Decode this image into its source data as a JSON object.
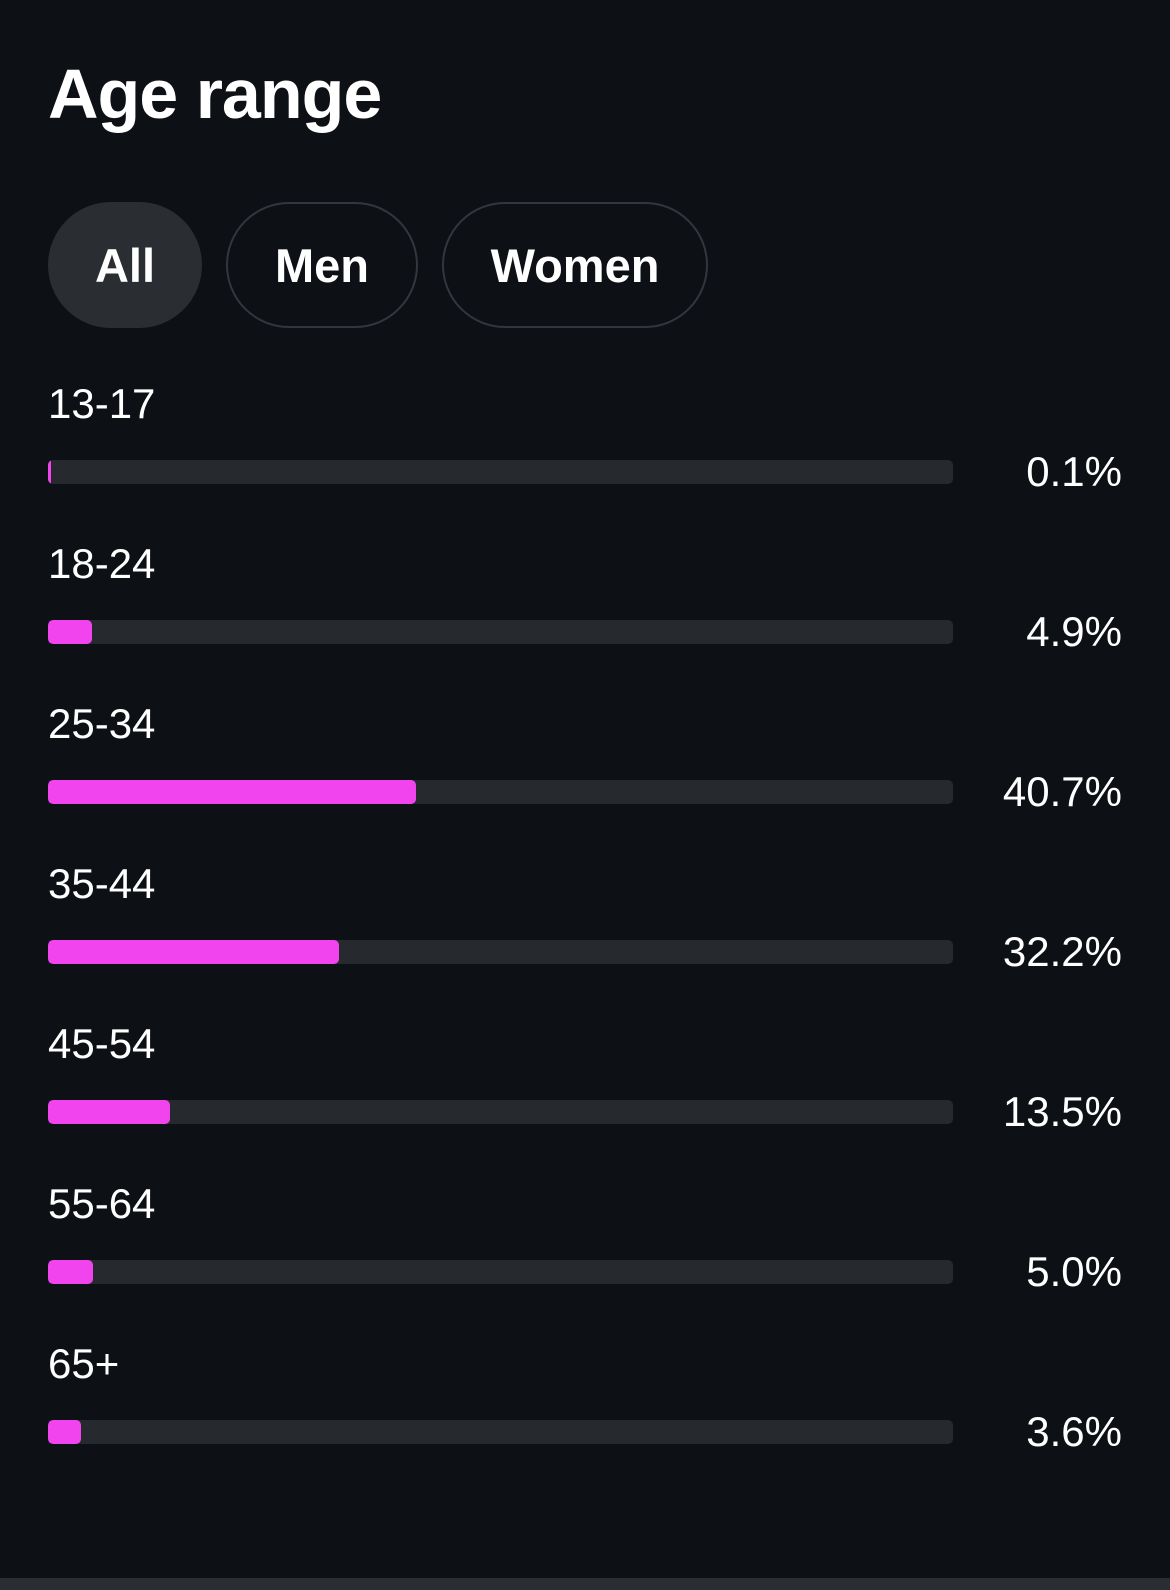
{
  "title": "Age range",
  "filters": [
    {
      "label": "All",
      "selected": true
    },
    {
      "label": "Men",
      "selected": false
    },
    {
      "label": "Women",
      "selected": false
    }
  ],
  "colors": {
    "background": "#0d1015",
    "bar_fill": "#f144ee",
    "bar_track": "#26292e",
    "pill_active": "#2a2e33"
  },
  "chart_data": {
    "type": "bar",
    "categories": [
      "13-17",
      "18-24",
      "25-34",
      "35-44",
      "45-54",
      "55-64",
      "65+"
    ],
    "values": [
      0.1,
      4.9,
      40.7,
      32.2,
      13.5,
      5.0,
      3.6
    ],
    "value_labels": [
      "0.1%",
      "4.9%",
      "40.7%",
      "32.2%",
      "13.5%",
      "5.0%",
      "3.6%"
    ],
    "title": "Age range",
    "xlabel": "",
    "ylabel": "",
    "xlim": [
      0,
      100
    ]
  }
}
